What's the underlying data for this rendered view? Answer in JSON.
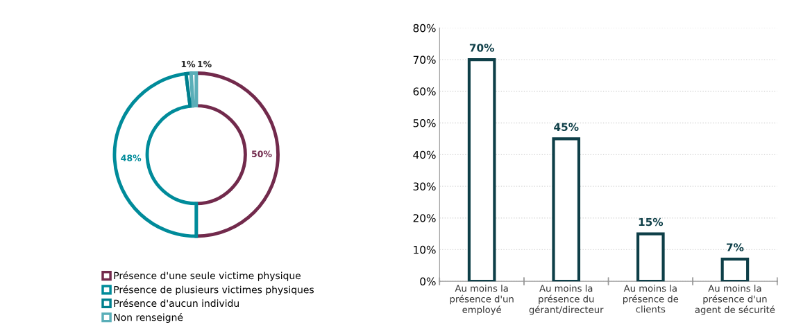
{
  "chart_data": [
    {
      "type": "donut",
      "categories": [
        "Présence d'une seule victime physique",
        "Présence de plusieurs victimes physiques",
        "Présence d'aucun individu",
        "Non renseigné"
      ],
      "values": [
        50,
        48,
        1,
        1
      ],
      "value_labels": [
        "50%",
        "48%",
        "1%",
        "1%"
      ],
      "colors": [
        "#722a4c",
        "#008b9a",
        "#00808e",
        "#5aaeb8"
      ],
      "legend": "bottom"
    },
    {
      "type": "bar",
      "categories": [
        "Au moins la\nprésence d'un\nemployé",
        "Au moins la\nprésence du\ngérant/directeur",
        "Au moins la\nprésence de\nclients",
        "Au moins la\nprésence d'un\nagent de sécurité"
      ],
      "values": [
        70,
        45,
        15,
        7
      ],
      "value_labels": [
        "70%",
        "45%",
        "15%",
        "7%"
      ],
      "color": "#0e3f48",
      "ylim": [
        0,
        80
      ],
      "yticks": [
        {
          "value": 0,
          "label": "0%"
        },
        {
          "value": 10,
          "label": "10%"
        },
        {
          "value": 20,
          "label": "20%"
        },
        {
          "value": 30,
          "label": "30%"
        },
        {
          "value": 40,
          "label": "40%"
        },
        {
          "value": 50,
          "label": "50%"
        },
        {
          "value": 60,
          "label": "60%"
        },
        {
          "value": 70,
          "label": "70%"
        },
        {
          "value": 80,
          "label": "80%"
        }
      ],
      "grid": "y"
    }
  ]
}
